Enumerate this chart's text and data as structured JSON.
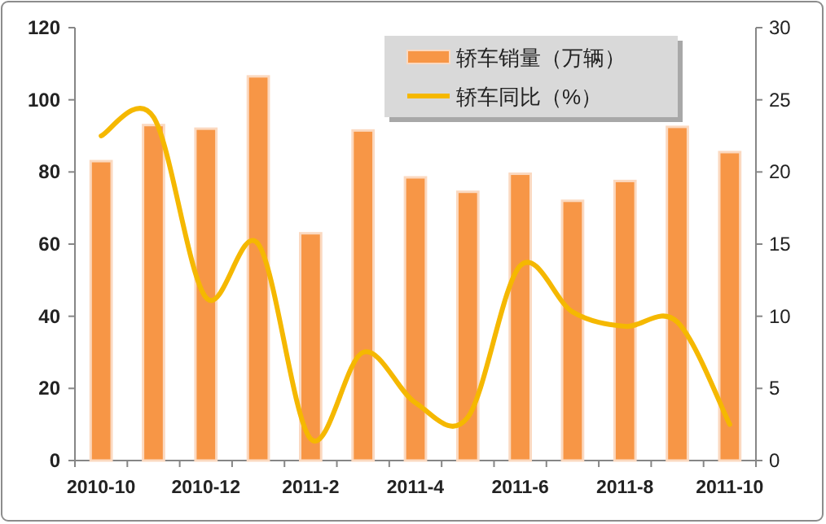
{
  "chart_data": {
    "type": "bar",
    "categories": [
      "2010-10",
      null,
      "2010-12",
      null,
      "2011-2",
      null,
      "2011-4",
      null,
      "2011-6",
      null,
      "2011-8",
      null,
      "2011-10"
    ],
    "series": [
      {
        "name": "轿车销量（万辆）",
        "color": "#f79646",
        "values": [
          83,
          93,
          92,
          106.5,
          63,
          91.5,
          78.5,
          74.5,
          79.5,
          72,
          77.5,
          92.5,
          85.5
        ]
      },
      {
        "name": "轿车同比（%）",
        "type": "line",
        "axis": "y2",
        "color": "#f5b800",
        "values": [
          22.5,
          23.8,
          11.3,
          15,
          1.5,
          7.5,
          4,
          3,
          13.5,
          10.3,
          9.3,
          9.6,
          2.5
        ]
      }
    ],
    "ylim": [
      0,
      120
    ],
    "yticks": [
      0,
      20,
      40,
      60,
      80,
      100,
      120
    ],
    "y2lim": [
      0,
      30
    ],
    "y2ticks": [
      0,
      5,
      10,
      15,
      20,
      25,
      30
    ],
    "legend": "top right",
    "grid": false
  }
}
